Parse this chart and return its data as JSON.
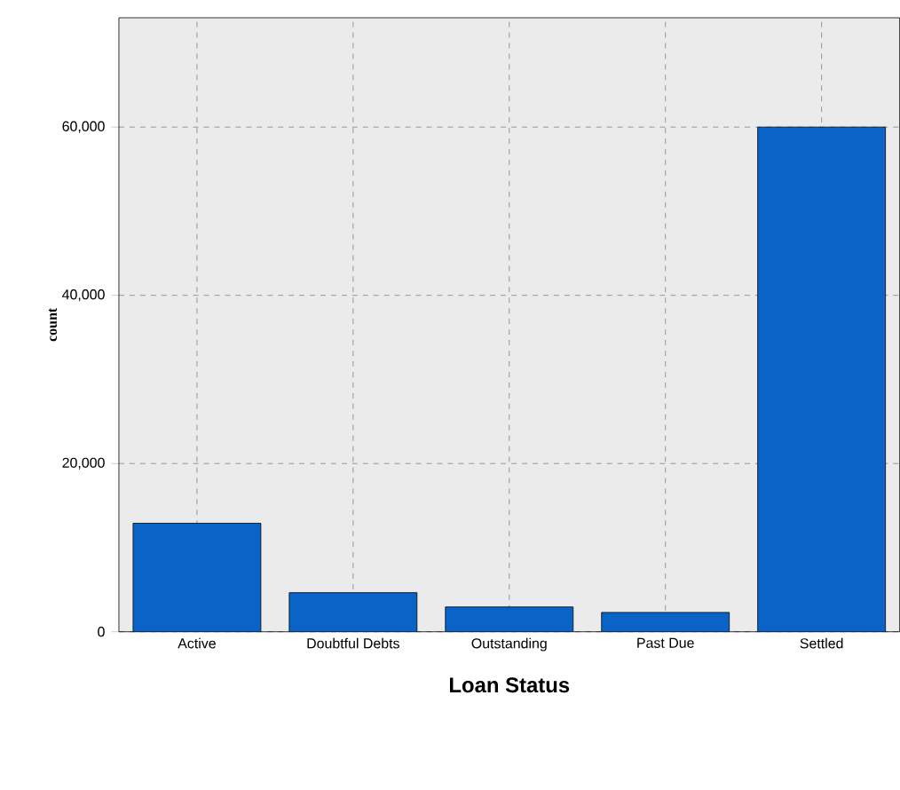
{
  "chart_data": {
    "type": "bar",
    "xlabel": "Loan Status",
    "ylabel": "count",
    "categories": [
      "Active",
      "Doubtful Debts",
      "Outstanding",
      "Past Due",
      "Settled"
    ],
    "values": [
      12900,
      4650,
      2950,
      2300,
      60000
    ],
    "color": "#0a64c8",
    "ylim": [
      0,
      73000
    ],
    "yticks": [
      {
        "value": 0,
        "label": "0"
      },
      {
        "value": 20000,
        "label": "20,000"
      },
      {
        "value": 40000,
        "label": "40,000"
      },
      {
        "value": 60000,
        "label": "60,000"
      }
    ],
    "grid": true
  }
}
